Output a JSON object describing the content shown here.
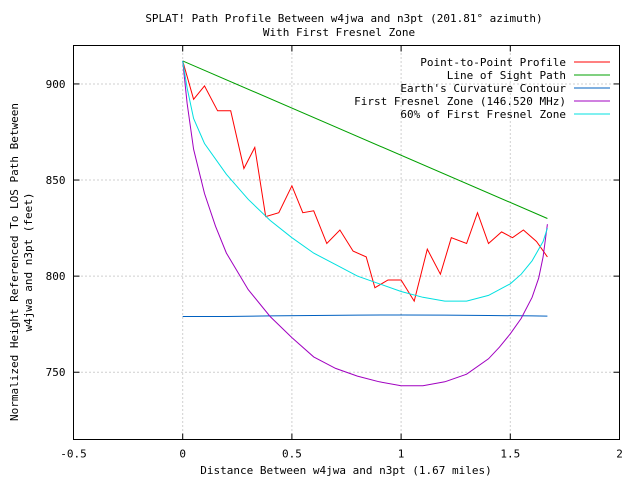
{
  "chart_data": {
    "type": "line",
    "title": "SPLAT! Path Profile Between w4jwa and n3pt (201.81° azimuth)",
    "subtitle": "With First Fresnel Zone",
    "xlabel": "Distance Between w4jwa and n3pt (1.67 miles)",
    "ylabel_line1": "Normalized Height Referenced To LOS Path Between",
    "ylabel_line2": "w4jwa and n3pt (feet)",
    "xlim": [
      -0.5,
      2
    ],
    "ylim": [
      715,
      920
    ],
    "xticks": [
      -0.5,
      0,
      0.5,
      1,
      1.5,
      2
    ],
    "xtick_labels": [
      "-0.5",
      "0",
      "0.5",
      "1",
      "1.5",
      "2"
    ],
    "yticks": [
      750,
      800,
      850,
      900
    ],
    "ytick_labels": [
      "750",
      "800",
      "850",
      "900"
    ],
    "grid": true,
    "legend_position": "top-right",
    "series": [
      {
        "name": "Point-to-Point Profile",
        "color": "#ff0000",
        "x": [
          0,
          0.05,
          0.1,
          0.16,
          0.22,
          0.28,
          0.33,
          0.38,
          0.44,
          0.5,
          0.55,
          0.6,
          0.66,
          0.72,
          0.78,
          0.84,
          0.88,
          0.94,
          1.0,
          1.06,
          1.12,
          1.18,
          1.23,
          1.3,
          1.35,
          1.4,
          1.46,
          1.51,
          1.56,
          1.62,
          1.67
        ],
        "y": [
          912,
          892,
          899,
          886,
          886,
          856,
          867,
          831,
          833,
          847,
          833,
          834,
          817,
          824,
          813,
          810,
          794,
          798,
          798,
          787,
          814,
          801,
          820,
          817,
          833,
          817,
          823,
          820,
          824,
          818,
          810
        ]
      },
      {
        "name": "Line of Sight Path",
        "color": "#00a000",
        "x": [
          0,
          1.67
        ],
        "y": [
          912,
          830
        ]
      },
      {
        "name": "Earth's Curvature Contour",
        "color": "#0060c0",
        "x": [
          0,
          0.2,
          0.4,
          0.6,
          0.8,
          1.0,
          1.2,
          1.4,
          1.6,
          1.67
        ],
        "y": [
          779,
          779,
          779.3,
          779.5,
          779.7,
          779.8,
          779.7,
          779.5,
          779.3,
          779.2
        ]
      },
      {
        "name": "First Fresnel Zone (146.520 MHz)",
        "color": "#a000c0",
        "x": [
          0,
          0.02,
          0.05,
          0.1,
          0.15,
          0.2,
          0.3,
          0.4,
          0.5,
          0.6,
          0.7,
          0.8,
          0.9,
          1.0,
          1.1,
          1.2,
          1.3,
          1.4,
          1.45,
          1.5,
          1.55,
          1.6,
          1.63,
          1.65,
          1.67
        ],
        "y": [
          912,
          890,
          866,
          843,
          826,
          812,
          793,
          779,
          768,
          758,
          752,
          748,
          745,
          743,
          743,
          745,
          749,
          757,
          763,
          770,
          778,
          789,
          799,
          810,
          827
        ]
      },
      {
        "name": "60% of First Fresnel Zone",
        "color": "#00e0e0",
        "x": [
          0,
          0.02,
          0.05,
          0.1,
          0.2,
          0.3,
          0.4,
          0.5,
          0.6,
          0.7,
          0.8,
          0.9,
          1.0,
          1.1,
          1.2,
          1.3,
          1.4,
          1.5,
          1.55,
          1.6,
          1.65,
          1.67
        ],
        "y": [
          912,
          898,
          882,
          869,
          853,
          840,
          829,
          820,
          812,
          806,
          800,
          796,
          792,
          789,
          787,
          787,
          790,
          796,
          801,
          808,
          818,
          825
        ]
      }
    ]
  }
}
